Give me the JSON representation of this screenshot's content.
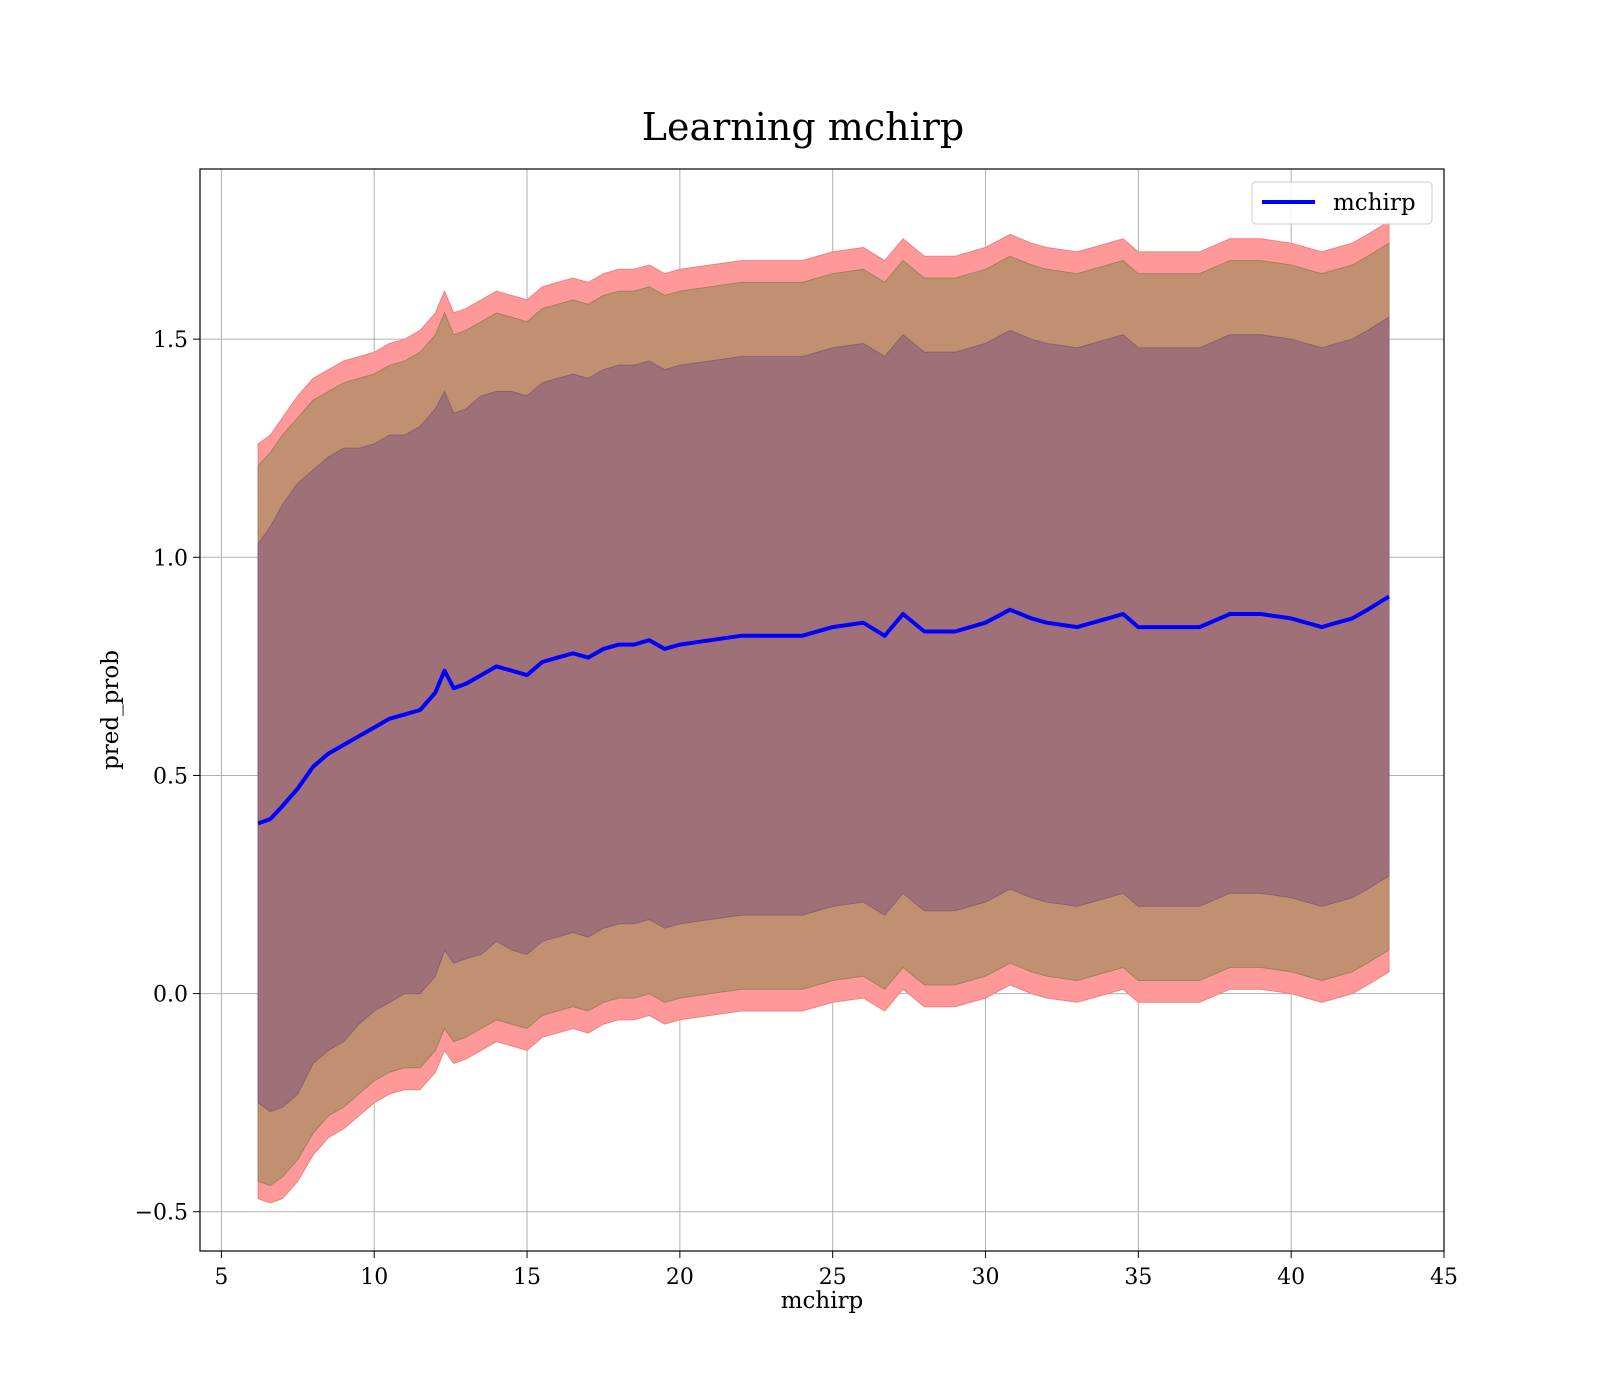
{
  "chart_data": {
    "type": "line",
    "title": "Learning mchirp",
    "xlabel": "mchirp",
    "ylabel": "pred_prob",
    "xlim": [
      4.3,
      45
    ],
    "ylim": [
      -0.59,
      1.89
    ],
    "xticks": [
      5,
      10,
      15,
      20,
      25,
      30,
      35,
      40,
      45
    ],
    "yticks": [
      -0.5,
      0.0,
      0.5,
      1.0,
      1.5
    ],
    "ytick_labels": [
      "−0.5",
      "0.0",
      "0.5",
      "1.0",
      "1.5"
    ],
    "grid": true,
    "legend": {
      "position": "top-right",
      "entries": [
        "mchirp"
      ]
    },
    "colors": {
      "line": "#0000ff",
      "band_outer": "#ff9999",
      "band_middle": "#c09070",
      "band_inner": "#a07078"
    },
    "series": [
      {
        "name": "mchirp",
        "x": [
          6.2,
          6.6,
          7,
          7.5,
          8,
          8.5,
          9,
          9.5,
          10,
          10.5,
          11,
          11.5,
          12,
          12.3,
          12.6,
          13,
          13.5,
          14,
          14.5,
          15,
          15.5,
          16,
          16.5,
          17,
          17.5,
          18,
          18.5,
          19,
          19.5,
          20,
          21,
          22,
          23,
          24,
          25,
          26,
          26.7,
          27.3,
          28,
          29,
          30,
          30.8,
          31.5,
          32,
          33,
          34,
          34.5,
          35,
          36,
          37,
          38,
          39,
          40,
          41,
          41.5,
          42,
          42.5,
          43.2
        ],
        "y": [
          0.39,
          0.4,
          0.43,
          0.47,
          0.52,
          0.55,
          0.57,
          0.59,
          0.61,
          0.63,
          0.64,
          0.65,
          0.69,
          0.74,
          0.7,
          0.71,
          0.73,
          0.75,
          0.74,
          0.73,
          0.76,
          0.77,
          0.78,
          0.77,
          0.79,
          0.8,
          0.8,
          0.81,
          0.79,
          0.8,
          0.81,
          0.82,
          0.82,
          0.82,
          0.84,
          0.85,
          0.82,
          0.87,
          0.83,
          0.83,
          0.85,
          0.88,
          0.86,
          0.85,
          0.84,
          0.86,
          0.87,
          0.84,
          0.84,
          0.84,
          0.87,
          0.87,
          0.86,
          0.84,
          0.85,
          0.86,
          0.88,
          0.91
        ],
        "band_inner_upper": [
          1.03,
          1.07,
          1.12,
          1.17,
          1.2,
          1.23,
          1.25,
          1.25,
          1.26,
          1.28,
          1.28,
          1.3,
          1.34,
          1.38,
          1.33,
          1.34,
          1.37,
          1.38,
          1.38,
          1.37,
          1.4,
          1.41,
          1.42,
          1.41,
          1.43,
          1.44,
          1.44,
          1.45,
          1.43,
          1.44,
          1.45,
          1.46,
          1.46,
          1.46,
          1.48,
          1.49,
          1.46,
          1.51,
          1.47,
          1.47,
          1.49,
          1.52,
          1.5,
          1.49,
          1.48,
          1.5,
          1.51,
          1.48,
          1.48,
          1.48,
          1.51,
          1.51,
          1.5,
          1.48,
          1.49,
          1.5,
          1.52,
          1.55
        ],
        "band_inner_lower": [
          -0.25,
          -0.27,
          -0.26,
          -0.23,
          -0.16,
          -0.13,
          -0.11,
          -0.07,
          -0.04,
          -0.02,
          0.0,
          0.0,
          0.04,
          0.1,
          0.07,
          0.08,
          0.09,
          0.12,
          0.1,
          0.09,
          0.12,
          0.13,
          0.14,
          0.13,
          0.15,
          0.16,
          0.16,
          0.17,
          0.15,
          0.16,
          0.17,
          0.18,
          0.18,
          0.18,
          0.2,
          0.21,
          0.18,
          0.23,
          0.19,
          0.19,
          0.21,
          0.24,
          0.22,
          0.21,
          0.2,
          0.22,
          0.23,
          0.2,
          0.2,
          0.2,
          0.23,
          0.23,
          0.22,
          0.2,
          0.21,
          0.22,
          0.24,
          0.27
        ],
        "band_middle_upper": [
          1.21,
          1.24,
          1.28,
          1.32,
          1.36,
          1.38,
          1.4,
          1.41,
          1.42,
          1.44,
          1.45,
          1.47,
          1.51,
          1.56,
          1.51,
          1.52,
          1.54,
          1.56,
          1.55,
          1.54,
          1.57,
          1.58,
          1.59,
          1.58,
          1.6,
          1.61,
          1.61,
          1.62,
          1.6,
          1.61,
          1.62,
          1.63,
          1.63,
          1.63,
          1.65,
          1.66,
          1.63,
          1.68,
          1.64,
          1.64,
          1.66,
          1.69,
          1.67,
          1.66,
          1.65,
          1.67,
          1.68,
          1.65,
          1.65,
          1.65,
          1.68,
          1.68,
          1.67,
          1.65,
          1.66,
          1.67,
          1.69,
          1.72
        ],
        "band_middle_lower": [
          -0.43,
          -0.44,
          -0.42,
          -0.38,
          -0.32,
          -0.28,
          -0.26,
          -0.23,
          -0.2,
          -0.18,
          -0.17,
          -0.17,
          -0.13,
          -0.08,
          -0.11,
          -0.1,
          -0.08,
          -0.06,
          -0.07,
          -0.08,
          -0.05,
          -0.04,
          -0.03,
          -0.04,
          -0.02,
          -0.01,
          -0.01,
          0.0,
          -0.02,
          -0.01,
          0.0,
          0.01,
          0.01,
          0.01,
          0.03,
          0.04,
          0.01,
          0.06,
          0.02,
          0.02,
          0.04,
          0.07,
          0.05,
          0.04,
          0.03,
          0.05,
          0.06,
          0.03,
          0.03,
          0.03,
          0.06,
          0.06,
          0.05,
          0.03,
          0.04,
          0.05,
          0.07,
          0.1
        ],
        "band_outer_upper": [
          1.26,
          1.28,
          1.32,
          1.37,
          1.41,
          1.43,
          1.45,
          1.46,
          1.47,
          1.49,
          1.5,
          1.52,
          1.56,
          1.61,
          1.56,
          1.57,
          1.59,
          1.61,
          1.6,
          1.59,
          1.62,
          1.63,
          1.64,
          1.63,
          1.65,
          1.66,
          1.66,
          1.67,
          1.65,
          1.66,
          1.67,
          1.68,
          1.68,
          1.68,
          1.7,
          1.71,
          1.68,
          1.73,
          1.69,
          1.69,
          1.71,
          1.74,
          1.72,
          1.71,
          1.7,
          1.72,
          1.73,
          1.7,
          1.7,
          1.7,
          1.73,
          1.73,
          1.72,
          1.7,
          1.71,
          1.72,
          1.74,
          1.77
        ],
        "band_outer_lower": [
          -0.47,
          -0.48,
          -0.47,
          -0.43,
          -0.37,
          -0.33,
          -0.31,
          -0.28,
          -0.25,
          -0.23,
          -0.22,
          -0.22,
          -0.18,
          -0.13,
          -0.16,
          -0.15,
          -0.13,
          -0.11,
          -0.12,
          -0.13,
          -0.1,
          -0.09,
          -0.08,
          -0.09,
          -0.07,
          -0.06,
          -0.06,
          -0.05,
          -0.07,
          -0.06,
          -0.05,
          -0.04,
          -0.04,
          -0.04,
          -0.02,
          -0.01,
          -0.04,
          0.01,
          -0.03,
          -0.03,
          -0.01,
          0.02,
          0.0,
          -0.01,
          -0.02,
          0.0,
          0.01,
          -0.02,
          -0.02,
          -0.02,
          0.01,
          0.01,
          0.0,
          -0.02,
          -0.01,
          0.0,
          0.02,
          0.05
        ]
      }
    ]
  }
}
